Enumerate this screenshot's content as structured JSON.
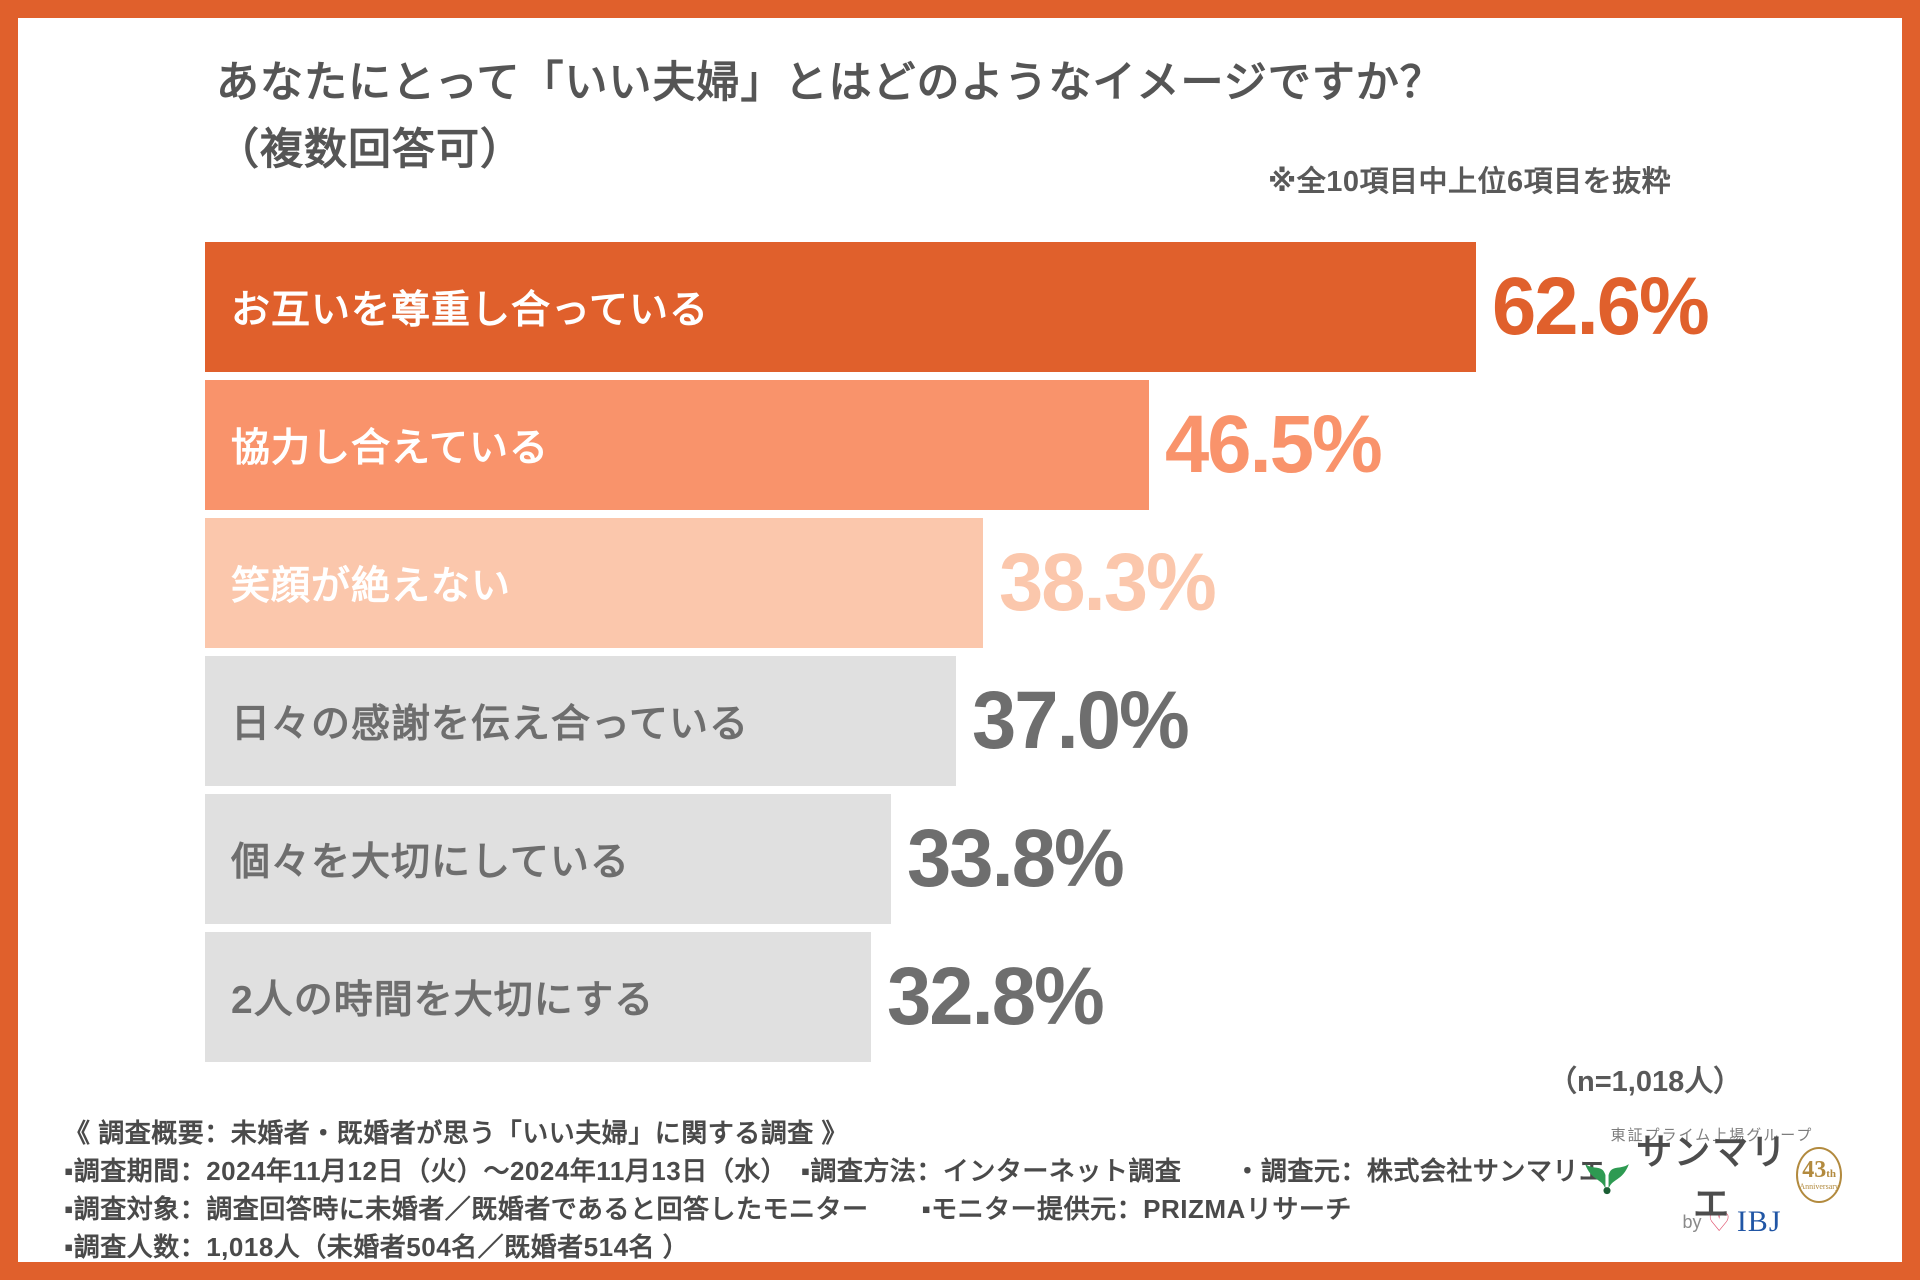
{
  "title": {
    "line1": "あなたにとって「いい夫婦」とはどのようなイメージですか？",
    "line2": "（複数回答可）"
  },
  "note": "※全10項目中上位6項目を抜粋",
  "sample_note": "（n=1,018人）",
  "chart_data": {
    "type": "bar",
    "orientation": "horizontal",
    "title": "あなたにとって「いい夫婦」とはどのようなイメージですか？（複数回答可）",
    "categories": [
      "お互いを尊重し合っている",
      "協力し合えている",
      "笑顔が絶えない",
      "日々の感謝を伝え合っている",
      "個々を大切にしている",
      "2人の時間を大切にする"
    ],
    "values": [
      62.6,
      46.5,
      38.3,
      37.0,
      33.8,
      32.8
    ],
    "value_labels": [
      "62.6%",
      "46.5%",
      "38.3%",
      "37.0%",
      "33.8%",
      "32.8%"
    ],
    "bar_colors": [
      "#E0602C",
      "#F9936B",
      "#FBC7AC",
      "#E0E0E0",
      "#E0E0E0",
      "#E0E0E0"
    ],
    "category_label_colors": [
      "#FFFFFF",
      "#FFFFFF",
      "#FFFFFF",
      "#6E6E6E",
      "#6E6E6E",
      "#6E6E6E"
    ],
    "value_label_colors": [
      "#E0602C",
      "#F9936B",
      "#FBC7AC",
      "#6E6E6E",
      "#6E6E6E",
      "#6E6E6E"
    ],
    "xlim": [
      0,
      70
    ],
    "grid": false,
    "legend": false,
    "sample_size": "n=1,018人",
    "note": "※全10項目中上位6項目を抜粋"
  },
  "footer": {
    "lines": [
      "《 調査概要：未婚者・既婚者が思う「いい夫婦」に関する調査 》",
      "▪調査期間：2024年11月12日（火）～2024年11月13日（水）　▪調査方法：インターネット調査　　・調査元：株式会社サンマリエ",
      "▪調査対象：調査回答時に未婚者／既婚者であると回答したモニター　　▪モニター提供元：PRIZMAリサーチ",
      "▪調査人数：1,018人（未婚者504名／既婚者514名 ）"
    ]
  },
  "logo": {
    "group_caption": "東証プライム上場グループ",
    "brand": "サンマリエ",
    "anniversary_number": "43",
    "anniversary_suffix": "th",
    "anniversary_caption": "Anniversary",
    "by_label": "by",
    "heart_glyph": "♡",
    "ibj_label": "IBJ",
    "leaf_green": "#2E9A52",
    "gold": "#B28A3E",
    "ibj_blue": "#2156A5"
  },
  "colors": {
    "frame_orange": "#E0602C",
    "title_text": "#555555",
    "footer_text": "#4A4A4A"
  }
}
